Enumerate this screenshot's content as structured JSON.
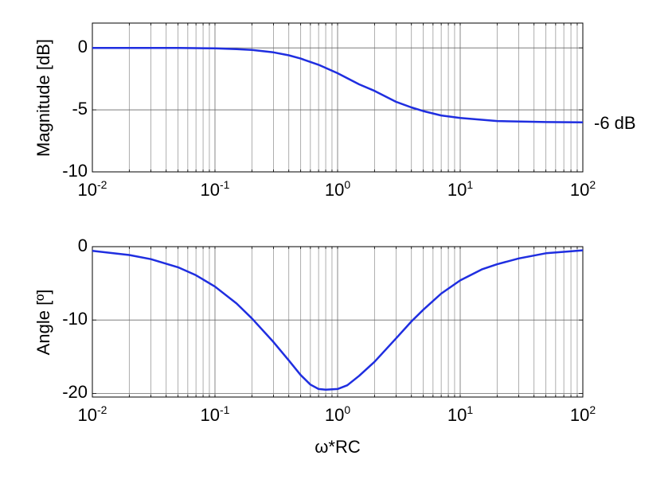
{
  "chart_data": [
    {
      "type": "line",
      "ylabel": "Magnitude [dB]",
      "xlabel": "",
      "xscale": "log",
      "xlim": [
        0.01,
        100
      ],
      "ylim": [
        -10,
        2
      ],
      "grid": "on",
      "xtick_labels": [
        {
          "base": "10",
          "exp": "-2"
        },
        {
          "base": "10",
          "exp": "-1"
        },
        {
          "base": "10",
          "exp": "0"
        },
        {
          "base": "10",
          "exp": "1"
        },
        {
          "base": "10",
          "exp": "2"
        }
      ],
      "ytick_labels": [
        "0",
        "-5",
        "-10"
      ],
      "yticks": [
        0,
        -5,
        -10
      ],
      "annotation": "-6 dB",
      "annotation_value": -6,
      "series": [
        {
          "color": "#1f2ee0",
          "x": [
            0.01,
            0.02,
            0.05,
            0.07,
            0.1,
            0.15,
            0.2,
            0.3,
            0.4,
            0.5,
            0.7,
            1.0,
            1.5,
            2,
            3,
            4,
            5,
            7,
            10,
            20,
            50,
            100
          ],
          "y": [
            0,
            0,
            0,
            -0.02,
            -0.04,
            -0.1,
            -0.17,
            -0.36,
            -0.6,
            -0.86,
            -1.36,
            -2.04,
            -2.94,
            -3.47,
            -4.35,
            -4.8,
            -5.1,
            -5.45,
            -5.65,
            -5.9,
            -5.98,
            -6.0
          ]
        }
      ]
    },
    {
      "type": "line",
      "ylabel": "Angle [º]",
      "xlabel": "ω*RC",
      "xscale": "log",
      "xlim": [
        0.01,
        100
      ],
      "ylim": [
        -20.5,
        0
      ],
      "grid": "on",
      "xtick_labels": [
        {
          "base": "10",
          "exp": "-2"
        },
        {
          "base": "10",
          "exp": "-1"
        },
        {
          "base": "10",
          "exp": "0"
        },
        {
          "base": "10",
          "exp": "1"
        },
        {
          "base": "10",
          "exp": "2"
        }
      ],
      "ytick_labels": [
        "0",
        "-10",
        "-20"
      ],
      "yticks": [
        0,
        -10,
        -20
      ],
      "series": [
        {
          "color": "#1f2ee0",
          "x": [
            0.01,
            0.02,
            0.03,
            0.05,
            0.07,
            0.1,
            0.15,
            0.2,
            0.3,
            0.4,
            0.5,
            0.6,
            0.7,
            0.8,
            1.0,
            1.2,
            1.5,
            2,
            3,
            4,
            5,
            7,
            10,
            15,
            20,
            30,
            50,
            70,
            100
          ],
          "y": [
            -0.57,
            -1.14,
            -1.7,
            -2.81,
            -3.89,
            -5.44,
            -7.74,
            -9.78,
            -13.0,
            -15.5,
            -17.5,
            -18.8,
            -19.4,
            -19.5,
            -19.4,
            -18.9,
            -17.6,
            -15.7,
            -12.5,
            -10.2,
            -8.6,
            -6.4,
            -4.6,
            -3.1,
            -2.4,
            -1.6,
            -0.9,
            -0.7,
            -0.5
          ]
        }
      ]
    }
  ]
}
